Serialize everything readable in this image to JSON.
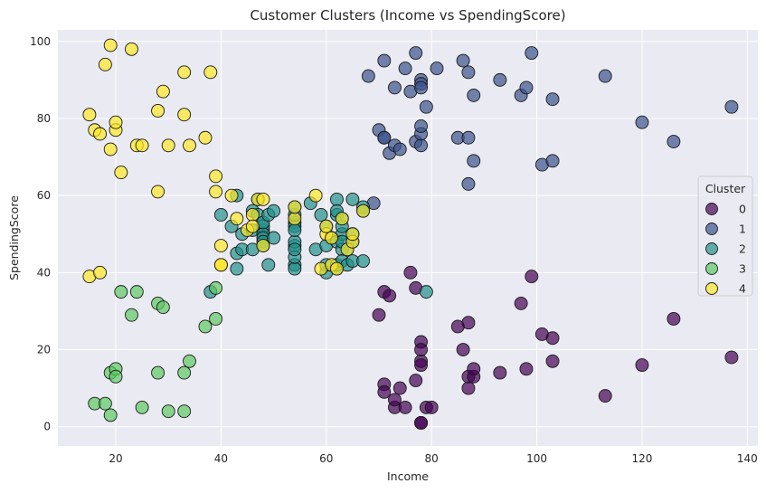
{
  "chart_data": {
    "type": "scatter",
    "title": "Customer Clusters (Income vs SpendingScore)",
    "xlabel": "Income",
    "ylabel": "SpendingScore",
    "xlim": [
      9,
      142
    ],
    "ylim": [
      -5,
      103
    ],
    "xticks": [
      20,
      40,
      60,
      80,
      100,
      120,
      140
    ],
    "yticks": [
      0,
      20,
      40,
      60,
      80,
      100
    ],
    "grid": true,
    "legend": {
      "title": "Cluster",
      "placement": "center-right"
    },
    "series": [
      {
        "name": "0",
        "color": "#440154",
        "points": [
          [
            70,
            29
          ],
          [
            71,
            11
          ],
          [
            71,
            9
          ],
          [
            71,
            35
          ],
          [
            72,
            34
          ],
          [
            73,
            5
          ],
          [
            73,
            7
          ],
          [
            74,
            10
          ],
          [
            75,
            5
          ],
          [
            76,
            40
          ],
          [
            77,
            12
          ],
          [
            77,
            36
          ],
          [
            78,
            22
          ],
          [
            78,
            17
          ],
          [
            78,
            16
          ],
          [
            78,
            20
          ],
          [
            78,
            1
          ],
          [
            78,
            1
          ],
          [
            79,
            5
          ],
          [
            80,
            5
          ],
          [
            85,
            26
          ],
          [
            86,
            20
          ],
          [
            87,
            27
          ],
          [
            87,
            13
          ],
          [
            87,
            10
          ],
          [
            88,
            13
          ],
          [
            88,
            15
          ],
          [
            93,
            14
          ],
          [
            97,
            32
          ],
          [
            98,
            15
          ],
          [
            99,
            39
          ],
          [
            101,
            24
          ],
          [
            103,
            23
          ],
          [
            103,
            17
          ],
          [
            113,
            8
          ],
          [
            120,
            16
          ],
          [
            126,
            28
          ],
          [
            137,
            18
          ]
        ]
      },
      {
        "name": "1",
        "color": "#3b528b",
        "points": [
          [
            68,
            91
          ],
          [
            69,
            58
          ],
          [
            70,
            77
          ],
          [
            71,
            95
          ],
          [
            71,
            75
          ],
          [
            71,
            75
          ],
          [
            72,
            71
          ],
          [
            73,
            88
          ],
          [
            73,
            73
          ],
          [
            74,
            72
          ],
          [
            75,
            93
          ],
          [
            76,
            87
          ],
          [
            77,
            97
          ],
          [
            77,
            74
          ],
          [
            78,
            90
          ],
          [
            78,
            89
          ],
          [
            78,
            88
          ],
          [
            78,
            73
          ],
          [
            78,
            76
          ],
          [
            78,
            78
          ],
          [
            79,
            83
          ],
          [
            81,
            93
          ],
          [
            85,
            75
          ],
          [
            86,
            95
          ],
          [
            87,
            92
          ],
          [
            87,
            63
          ],
          [
            87,
            75
          ],
          [
            88,
            69
          ],
          [
            88,
            86
          ],
          [
            93,
            90
          ],
          [
            97,
            86
          ],
          [
            98,
            88
          ],
          [
            99,
            97
          ],
          [
            101,
            68
          ],
          [
            103,
            85
          ],
          [
            103,
            69
          ],
          [
            113,
            91
          ],
          [
            120,
            79
          ],
          [
            126,
            74
          ],
          [
            137,
            83
          ]
        ]
      },
      {
        "name": "2",
        "color": "#21918c",
        "points": [
          [
            38,
            35
          ],
          [
            40,
            55
          ],
          [
            42,
            52
          ],
          [
            43,
            60
          ],
          [
            43,
            45
          ],
          [
            43,
            41
          ],
          [
            44,
            50
          ],
          [
            44,
            46
          ],
          [
            46,
            51
          ],
          [
            46,
            46
          ],
          [
            46,
            56
          ],
          [
            47,
            55
          ],
          [
            47,
            59
          ],
          [
            48,
            51
          ],
          [
            48,
            52
          ],
          [
            48,
            50
          ],
          [
            48,
            49
          ],
          [
            48,
            48
          ],
          [
            48,
            47
          ],
          [
            48,
            53
          ],
          [
            49,
            55
          ],
          [
            49,
            42
          ],
          [
            50,
            56
          ],
          [
            50,
            49
          ],
          [
            54,
            47
          ],
          [
            54,
            53
          ],
          [
            54,
            48
          ],
          [
            54,
            52
          ],
          [
            54,
            42
          ],
          [
            54,
            51
          ],
          [
            54,
            55
          ],
          [
            54,
            41
          ],
          [
            54,
            44
          ],
          [
            54,
            57
          ],
          [
            54,
            46
          ],
          [
            57,
            58
          ],
          [
            58,
            46
          ],
          [
            59,
            55
          ],
          [
            60,
            52
          ],
          [
            60,
            47
          ],
          [
            60,
            40
          ],
          [
            60,
            42
          ],
          [
            61,
            49
          ],
          [
            62,
            41
          ],
          [
            62,
            48
          ],
          [
            62,
            59
          ],
          [
            62,
            55
          ],
          [
            62,
            56
          ],
          [
            62,
            42
          ],
          [
            63,
            50
          ],
          [
            63,
            46
          ],
          [
            63,
            43
          ],
          [
            63,
            48
          ],
          [
            63,
            52
          ],
          [
            63,
            54
          ],
          [
            64,
            42
          ],
          [
            64,
            46
          ],
          [
            65,
            48
          ],
          [
            65,
            50
          ],
          [
            65,
            43
          ],
          [
            65,
            59
          ],
          [
            67,
            43
          ],
          [
            67,
            57
          ],
          [
            67,
            56
          ],
          [
            79,
            35
          ]
        ]
      },
      {
        "name": "3",
        "color": "#5ec962",
        "points": [
          [
            16,
            6
          ],
          [
            18,
            6
          ],
          [
            19,
            3
          ],
          [
            19,
            14
          ],
          [
            20,
            15
          ],
          [
            20,
            13
          ],
          [
            21,
            35
          ],
          [
            23,
            29
          ],
          [
            24,
            35
          ],
          [
            25,
            5
          ],
          [
            28,
            14
          ],
          [
            28,
            32
          ],
          [
            29,
            31
          ],
          [
            30,
            4
          ],
          [
            33,
            4
          ],
          [
            33,
            14
          ],
          [
            34,
            17
          ],
          [
            37,
            26
          ],
          [
            39,
            36
          ],
          [
            39,
            28
          ]
        ]
      },
      {
        "name": "4",
        "color": "#fde725",
        "points": [
          [
            15,
            39
          ],
          [
            15,
            81
          ],
          [
            16,
            77
          ],
          [
            17,
            40
          ],
          [
            17,
            76
          ],
          [
            18,
            94
          ],
          [
            19,
            72
          ],
          [
            19,
            99
          ],
          [
            20,
            77
          ],
          [
            20,
            79
          ],
          [
            21,
            66
          ],
          [
            23,
            98
          ],
          [
            24,
            73
          ],
          [
            25,
            73
          ],
          [
            28,
            82
          ],
          [
            28,
            61
          ],
          [
            29,
            87
          ],
          [
            30,
            73
          ],
          [
            33,
            92
          ],
          [
            33,
            81
          ],
          [
            34,
            73
          ],
          [
            37,
            75
          ],
          [
            38,
            92
          ],
          [
            39,
            61
          ],
          [
            39,
            65
          ],
          [
            40,
            47
          ],
          [
            40,
            42
          ],
          [
            40,
            42
          ],
          [
            42,
            60
          ],
          [
            43,
            54
          ],
          [
            45,
            51
          ],
          [
            46,
            55
          ],
          [
            46,
            52
          ],
          [
            47,
            59
          ],
          [
            48,
            59
          ],
          [
            48,
            47
          ],
          [
            54,
            54
          ],
          [
            54,
            57
          ],
          [
            58,
            60
          ],
          [
            59,
            41
          ],
          [
            60,
            50
          ],
          [
            60,
            52
          ],
          [
            61,
            42
          ],
          [
            61,
            49
          ],
          [
            62,
            41
          ],
          [
            63,
            54
          ],
          [
            64,
            46
          ],
          [
            65,
            48
          ],
          [
            65,
            50
          ],
          [
            67,
            56
          ]
        ]
      }
    ]
  }
}
